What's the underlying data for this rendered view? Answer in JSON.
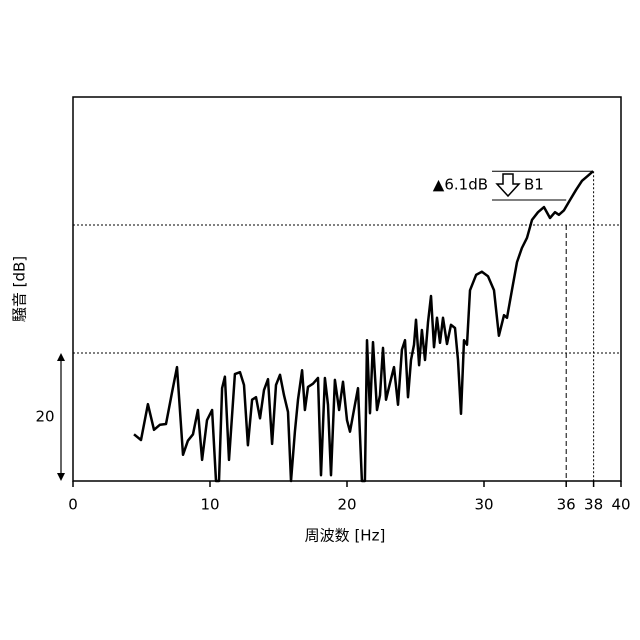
{
  "chart_data": {
    "type": "line",
    "x_label": "周波数 [Hz]",
    "y_label": "騒音 [dB]",
    "xlim": [
      0,
      40
    ],
    "xticks": [
      0,
      10,
      20,
      30,
      36,
      38,
      40
    ],
    "ylim": [
      0,
      60
    ],
    "hlines": [
      20,
      40
    ],
    "scale_bar": 20,
    "annotation": "▲6.1dB",
    "arrow_label": "B1",
    "series": [
      {
        "color": "#000000",
        "x": [
          4.45,
          4.96,
          5.47,
          5.91,
          6.35,
          6.79,
          7.23,
          7.59,
          8.03,
          8.39,
          8.76,
          9.12,
          9.42,
          9.78,
          10.15,
          10.44,
          10.66,
          10.88,
          11.09,
          11.39,
          11.82,
          12.19,
          12.48,
          12.77,
          13.07,
          13.36,
          13.65,
          13.94,
          14.23,
          14.53,
          14.82,
          15.11,
          15.4,
          15.69,
          15.91,
          16.2,
          16.42,
          16.72,
          16.93,
          17.15,
          17.52,
          17.88,
          18.1,
          18.39,
          18.61,
          18.83,
          19.12,
          19.42,
          19.71,
          20.0,
          20.22,
          20.58,
          20.8,
          21.09,
          21.31,
          21.46,
          21.68,
          21.9,
          22.19,
          22.41,
          22.63,
          22.85,
          23.14,
          23.43,
          23.72,
          24.01,
          24.23,
          24.45,
          24.67,
          24.89,
          25.04,
          25.26,
          25.47,
          25.69,
          25.91,
          26.13,
          26.35,
          26.57,
          26.79,
          27.01,
          27.3,
          27.59,
          27.88,
          28.1,
          28.32,
          28.54,
          28.76,
          28.98,
          29.42,
          29.85,
          30.29,
          30.73,
          31.09,
          31.46,
          31.68,
          32.04,
          32.41,
          32.77,
          33.14,
          33.5,
          33.94,
          34.38,
          34.82,
          35.18,
          35.47,
          35.84,
          36.28,
          36.72,
          37.15,
          37.59,
          37.96
        ],
        "values": [
          7.3,
          6.4,
          12.0,
          8.0,
          8.8,
          8.9,
          13.9,
          17.8,
          4.1,
          6.3,
          7.3,
          11.1,
          3.3,
          9.5,
          11.1,
          0,
          0,
          14.5,
          16.3,
          3.3,
          16.7,
          17.0,
          15.0,
          5.6,
          12.7,
          13.1,
          9.8,
          14.2,
          15.9,
          5.8,
          15.0,
          16.6,
          13.4,
          10.8,
          0,
          7.7,
          12.7,
          17.3,
          11.1,
          14.7,
          15.2,
          16.1,
          0.9,
          16.1,
          11.9,
          0.9,
          15.8,
          11.1,
          15.5,
          9.5,
          7.7,
          11.9,
          14.5,
          0,
          0,
          22.0,
          10.6,
          21.7,
          11.1,
          13.4,
          20.8,
          12.7,
          15.3,
          17.8,
          11.9,
          20.5,
          22.0,
          13.1,
          18.9,
          21.3,
          25.2,
          18.1,
          23.6,
          18.9,
          24.8,
          28.9,
          20.9,
          25.5,
          21.6,
          25.5,
          21.4,
          24.4,
          23.9,
          18.9,
          10.5,
          22.0,
          21.3,
          29.8,
          32.2,
          32.7,
          32.0,
          29.8,
          22.7,
          25.9,
          25.5,
          29.8,
          34.2,
          36.4,
          38.0,
          40.8,
          42.0,
          42.8,
          41.1,
          42.0,
          41.6,
          42.3,
          43.9,
          45.5,
          46.9,
          47.7,
          48.4
        ]
      }
    ]
  }
}
